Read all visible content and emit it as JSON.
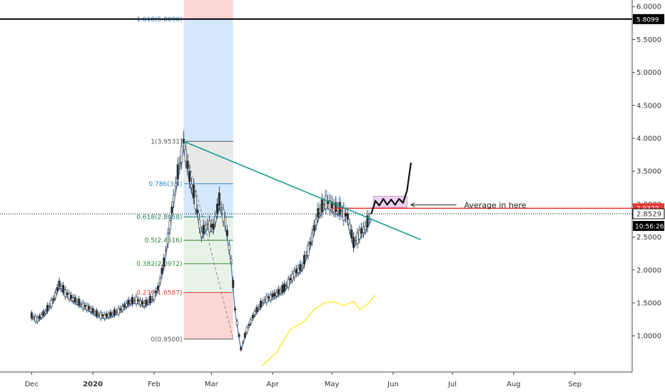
{
  "chart_data": {
    "type": "candlestick",
    "price_axis": {
      "ticks": [
        "6.0000",
        "5.5000",
        "5.0000",
        "4.5000",
        "4.0000",
        "3.5000",
        "3.0000",
        "2.5000",
        "2.0000",
        "1.5000",
        "1.0000"
      ],
      "tick_values": [
        6.0,
        5.5,
        5.0,
        4.5,
        4.0,
        3.5,
        3.0,
        2.5,
        2.0,
        1.5,
        1.0
      ],
      "ylim": [
        0.45,
        6.1
      ]
    },
    "time_axis": {
      "labels": [
        "Dec",
        "2020",
        "Feb",
        "Mar",
        "Apr",
        "May",
        "Jun",
        "Jul",
        "Aug",
        "Sep"
      ],
      "dates": [
        "2019-12-01",
        "2020-01-01",
        "2020-02-01",
        "2020-03-01",
        "2020-04-01",
        "2020-05-01",
        "2020-06-01",
        "2020-07-01",
        "2020-08-01",
        "2020-09-01"
      ],
      "xlim": [
        "2019-11-15",
        "2020-09-30"
      ]
    },
    "horizontal_lines": [
      {
        "value": 5.8099,
        "label": "5.8099",
        "color": "#000000"
      },
      {
        "value": 2.9372,
        "label": "2.9372",
        "color": "#e53935"
      },
      {
        "value": 2.8529,
        "label": "2.8529",
        "color": "#000000",
        "style": "dotted"
      }
    ],
    "current_time_label": "10:56:26",
    "fibonacci": {
      "levels": [
        {
          "ratio_label": "1.618(5.8090)",
          "value": 5.809,
          "color": "#2e86c1"
        },
        {
          "ratio_label": "1(3.9531)",
          "value": 3.9531,
          "color": "#555555"
        },
        {
          "ratio_label": "0.786(3.3)",
          "value": 3.31,
          "color": "#2e86c1"
        },
        {
          "ratio_label": "0.618(2.8058)",
          "value": 2.8058,
          "color": "#1e7f6e"
        },
        {
          "ratio_label": "0.5(2.4516)",
          "value": 2.4516,
          "color": "#2e7d32"
        },
        {
          "ratio_label": "0.382(2.0972)",
          "value": 2.0972,
          "color": "#388e3c"
        },
        {
          "ratio_label": "0.236(1.6587)",
          "value": 1.6587,
          "color": "#e53935"
        },
        {
          "ratio_label": "0(0.9500)",
          "value": 0.95,
          "color": "#555555"
        }
      ],
      "start_date": "2020-02-16",
      "end_date": "2020-03-12"
    },
    "trendline": {
      "from": {
        "date": "2020-02-16",
        "price": 3.953
      },
      "to": {
        "date": "2020-06-15",
        "price": 2.46
      },
      "color": "#1a9e8f"
    },
    "annotation": {
      "text": "Average in here",
      "color": "#222222"
    },
    "colors": {
      "price_line": "#4a7fc1",
      "ma_yellow": "#ffeb3b",
      "fib_blue": "#cfe6fb",
      "fib_red": "#f9d2d2",
      "fib_gray": "#e6e6e6",
      "fib_green": "#e4f2e4",
      "highlight_box": "#e6bfe6"
    },
    "price_series": [
      {
        "date": "2019-12-01",
        "price": 1.3
      },
      {
        "date": "2019-12-04",
        "price": 1.25
      },
      {
        "date": "2019-12-08",
        "price": 1.36
      },
      {
        "date": "2019-12-12",
        "price": 1.55
      },
      {
        "date": "2019-12-15",
        "price": 1.78
      },
      {
        "date": "2019-12-18",
        "price": 1.66
      },
      {
        "date": "2019-12-22",
        "price": 1.56
      },
      {
        "date": "2019-12-26",
        "price": 1.48
      },
      {
        "date": "2019-12-30",
        "price": 1.42
      },
      {
        "date": "2020-01-03",
        "price": 1.33
      },
      {
        "date": "2020-01-07",
        "price": 1.3
      },
      {
        "date": "2020-01-11",
        "price": 1.33
      },
      {
        "date": "2020-01-15",
        "price": 1.4
      },
      {
        "date": "2020-01-19",
        "price": 1.5
      },
      {
        "date": "2020-01-23",
        "price": 1.55
      },
      {
        "date": "2020-01-27",
        "price": 1.48
      },
      {
        "date": "2020-01-31",
        "price": 1.56
      },
      {
        "date": "2020-02-03",
        "price": 1.72
      },
      {
        "date": "2020-02-06",
        "price": 2.1
      },
      {
        "date": "2020-02-09",
        "price": 2.7
      },
      {
        "date": "2020-02-12",
        "price": 3.3
      },
      {
        "date": "2020-02-16",
        "price": 3.95
      },
      {
        "date": "2020-02-19",
        "price": 3.4
      },
      {
        "date": "2020-02-22",
        "price": 3.05
      },
      {
        "date": "2020-02-25",
        "price": 2.55
      },
      {
        "date": "2020-02-28",
        "price": 2.7
      },
      {
        "date": "2020-03-02",
        "price": 2.65
      },
      {
        "date": "2020-03-05",
        "price": 3.05
      },
      {
        "date": "2020-03-08",
        "price": 2.75
      },
      {
        "date": "2020-03-11",
        "price": 2.15
      },
      {
        "date": "2020-03-13",
        "price": 1.4
      },
      {
        "date": "2020-03-16",
        "price": 0.8
      },
      {
        "date": "2020-03-19",
        "price": 1.1
      },
      {
        "date": "2020-03-23",
        "price": 1.35
      },
      {
        "date": "2020-03-28",
        "price": 1.55
      },
      {
        "date": "2020-04-02",
        "price": 1.62
      },
      {
        "date": "2020-04-07",
        "price": 1.72
      },
      {
        "date": "2020-04-12",
        "price": 1.95
      },
      {
        "date": "2020-04-16",
        "price": 2.05
      },
      {
        "date": "2020-04-20",
        "price": 2.4
      },
      {
        "date": "2020-04-24",
        "price": 2.85
      },
      {
        "date": "2020-04-28",
        "price": 3.05
      },
      {
        "date": "2020-05-02",
        "price": 2.95
      },
      {
        "date": "2020-05-06",
        "price": 2.9
      },
      {
        "date": "2020-05-09",
        "price": 2.8
      },
      {
        "date": "2020-05-12",
        "price": 2.4
      },
      {
        "date": "2020-05-15",
        "price": 2.55
      },
      {
        "date": "2020-05-18",
        "price": 2.65
      },
      {
        "date": "2020-05-21",
        "price": 2.85
      }
    ],
    "ma_series": [
      {
        "date": "2020-03-27",
        "price": 0.55
      },
      {
        "date": "2020-04-03",
        "price": 0.75
      },
      {
        "date": "2020-04-10",
        "price": 1.1
      },
      {
        "date": "2020-04-17",
        "price": 1.22
      },
      {
        "date": "2020-04-22",
        "price": 1.4
      },
      {
        "date": "2020-04-27",
        "price": 1.5
      },
      {
        "date": "2020-05-02",
        "price": 1.52
      },
      {
        "date": "2020-05-07",
        "price": 1.46
      },
      {
        "date": "2020-05-12",
        "price": 1.52
      },
      {
        "date": "2020-05-15",
        "price": 1.4
      },
      {
        "date": "2020-05-19",
        "price": 1.48
      },
      {
        "date": "2020-05-23",
        "price": 1.62
      }
    ]
  }
}
